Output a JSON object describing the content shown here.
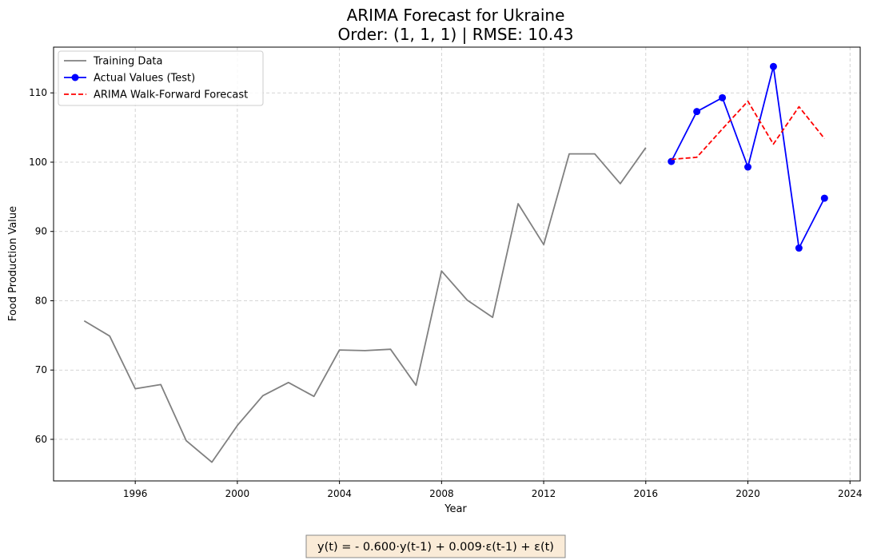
{
  "chart_data": {
    "type": "line",
    "title": "ARIMA Forecast for Ukraine",
    "subtitle": "Order: (1, 1, 1) | RMSE: 10.43",
    "xlabel": "Year",
    "ylabel": "Food Production Value",
    "xlim": [
      1992.8,
      2024.4
    ],
    "ylim": [
      54.0,
      116.6
    ],
    "xticks": [
      1996,
      2000,
      2004,
      2008,
      2012,
      2016,
      2020,
      2024
    ],
    "yticks": [
      60,
      70,
      80,
      90,
      100,
      110
    ],
    "grid": true,
    "legend_position": "top-left",
    "series": [
      {
        "name": "Training Data",
        "color": "#808080",
        "style": "solid",
        "marker": "none",
        "x": [
          1994,
          1995,
          1996,
          1997,
          1998,
          1999,
          2000,
          2001,
          2002,
          2003,
          2004,
          2005,
          2006,
          2007,
          2008,
          2009,
          2010,
          2011,
          2012,
          2013,
          2014,
          2015,
          2016
        ],
        "y": [
          77.1,
          74.9,
          67.3,
          67.9,
          59.8,
          56.7,
          62.0,
          66.3,
          68.2,
          66.2,
          72.9,
          72.8,
          73.0,
          67.8,
          84.3,
          80.1,
          77.6,
          94.0,
          88.1,
          101.2,
          101.2,
          96.9,
          102.1
        ]
      },
      {
        "name": "Actual Values (Test)",
        "color": "#0000ff",
        "style": "solid",
        "marker": "circle",
        "x": [
          2017,
          2018,
          2019,
          2020,
          2021,
          2022,
          2023
        ],
        "y": [
          100.1,
          107.3,
          109.3,
          99.3,
          113.8,
          87.6,
          94.8
        ]
      },
      {
        "name": "ARIMA Walk-Forward Forecast",
        "color": "#ff0000",
        "style": "dashed",
        "marker": "none",
        "x": [
          2017,
          2018,
          2019,
          2020,
          2021,
          2022,
          2023
        ],
        "y": [
          100.4,
          100.7,
          104.8,
          108.8,
          102.6,
          108.0,
          103.4
        ]
      }
    ],
    "annotations": [
      {
        "text": "y(t) = - 0.600·y(t-1) + 0.009·ε(t-1) + ε(t)",
        "box_color": "#faebd7",
        "position": "bottom-center"
      }
    ]
  }
}
